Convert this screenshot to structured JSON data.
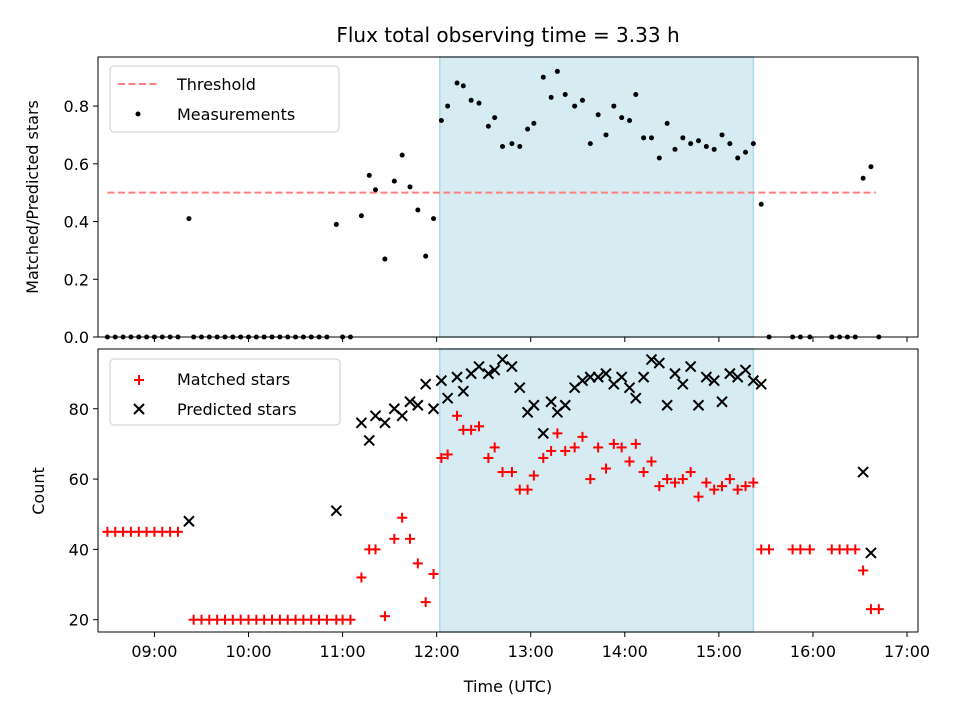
{
  "figure": {
    "title": "Flux total observing time = 3.33 h",
    "xlabel": "Time (UTC)",
    "xticks": [
      "09:00",
      "10:00",
      "11:00",
      "12:00",
      "13:00",
      "14:00",
      "15:00",
      "16:00",
      "17:00"
    ]
  },
  "colors": {
    "threshold": "#ff7f7f",
    "measurements": "#000000",
    "matched": "#ff0000",
    "predicted": "#000000",
    "shade": "#add8e6"
  },
  "chart_data": [
    {
      "type": "scatter",
      "ylabel": "Matched/Predicted stars",
      "ylim": [
        0,
        0.97
      ],
      "xlim": [
        "08:24",
        "17:07"
      ],
      "yticks": [
        "0.0",
        "0.2",
        "0.4",
        "0.6",
        "0.8"
      ],
      "shaded_interval": [
        "12:02",
        "15:22"
      ],
      "threshold": {
        "value": 0.5,
        "x": [
          "08:30",
          "16:40"
        ]
      },
      "legend": {
        "position": "top-left",
        "entries": [
          "Threshold",
          "Measurements"
        ]
      },
      "series": [
        {
          "name": "Measurements",
          "marker": "dot",
          "points": [
            [
              "08:30",
              0
            ],
            [
              "08:35",
              0
            ],
            [
              "08:40",
              0
            ],
            [
              "08:45",
              0
            ],
            [
              "08:50",
              0
            ],
            [
              "08:55",
              0
            ],
            [
              "09:00",
              0
            ],
            [
              "09:05",
              0
            ],
            [
              "09:10",
              0
            ],
            [
              "09:15",
              0
            ],
            [
              "09:22",
              0.41
            ],
            [
              "09:25",
              0
            ],
            [
              "09:30",
              0
            ],
            [
              "09:35",
              0
            ],
            [
              "09:40",
              0
            ],
            [
              "09:45",
              0
            ],
            [
              "09:50",
              0
            ],
            [
              "09:55",
              0
            ],
            [
              "10:00",
              0
            ],
            [
              "10:05",
              0
            ],
            [
              "10:10",
              0
            ],
            [
              "10:15",
              0
            ],
            [
              "10:20",
              0
            ],
            [
              "10:25",
              0
            ],
            [
              "10:30",
              0
            ],
            [
              "10:35",
              0
            ],
            [
              "10:40",
              0
            ],
            [
              "10:45",
              0
            ],
            [
              "10:50",
              0
            ],
            [
              "10:56",
              0.39
            ],
            [
              "11:00",
              0
            ],
            [
              "11:05",
              0
            ],
            [
              "11:12",
              0.42
            ],
            [
              "11:17",
              0.56
            ],
            [
              "11:21",
              0.51
            ],
            [
              "11:27",
              0.27
            ],
            [
              "11:33",
              0.54
            ],
            [
              "11:38",
              0.63
            ],
            [
              "11:43",
              0.52
            ],
            [
              "11:48",
              0.44
            ],
            [
              "11:53",
              0.28
            ],
            [
              "11:58",
              0.41
            ],
            [
              "12:03",
              0.75
            ],
            [
              "12:07",
              0.8
            ],
            [
              "12:13",
              0.88
            ],
            [
              "12:17",
              0.87
            ],
            [
              "12:22",
              0.82
            ],
            [
              "12:27",
              0.81
            ],
            [
              "12:33",
              0.73
            ],
            [
              "12:37",
              0.76
            ],
            [
              "12:42",
              0.66
            ],
            [
              "12:48",
              0.67
            ],
            [
              "12:53",
              0.66
            ],
            [
              "12:58",
              0.72
            ],
            [
              "13:02",
              0.74
            ],
            [
              "13:08",
              0.9
            ],
            [
              "13:13",
              0.83
            ],
            [
              "13:17",
              0.92
            ],
            [
              "13:22",
              0.84
            ],
            [
              "13:28",
              0.8
            ],
            [
              "13:33",
              0.82
            ],
            [
              "13:38",
              0.67
            ],
            [
              "13:43",
              0.77
            ],
            [
              "13:48",
              0.7
            ],
            [
              "13:53",
              0.8
            ],
            [
              "13:58",
              0.76
            ],
            [
              "14:03",
              0.75
            ],
            [
              "14:07",
              0.84
            ],
            [
              "14:12",
              0.69
            ],
            [
              "14:17",
              0.69
            ],
            [
              "14:22",
              0.62
            ],
            [
              "14:27",
              0.74
            ],
            [
              "14:32",
              0.65
            ],
            [
              "14:37",
              0.69
            ],
            [
              "14:42",
              0.67
            ],
            [
              "14:47",
              0.68
            ],
            [
              "14:52",
              0.66
            ],
            [
              "14:57",
              0.65
            ],
            [
              "15:02",
              0.7
            ],
            [
              "15:07",
              0.67
            ],
            [
              "15:12",
              0.62
            ],
            [
              "15:17",
              0.64
            ],
            [
              "15:22",
              0.67
            ],
            [
              "15:27",
              0.46
            ],
            [
              "15:32",
              0
            ],
            [
              "15:47",
              0
            ],
            [
              "15:52",
              0
            ],
            [
              "15:58",
              0
            ],
            [
              "16:12",
              0
            ],
            [
              "16:17",
              0
            ],
            [
              "16:22",
              0
            ],
            [
              "16:27",
              0
            ],
            [
              "16:32",
              0.55
            ],
            [
              "16:37",
              0.59
            ],
            [
              "16:42",
              0
            ]
          ]
        }
      ]
    },
    {
      "type": "scatter",
      "ylabel": "Count",
      "ylim": [
        16.5,
        97
      ],
      "xlim": [
        "08:24",
        "17:07"
      ],
      "yticks": [
        "20",
        "40",
        "60",
        "80"
      ],
      "shaded_interval": [
        "12:02",
        "15:22"
      ],
      "legend": {
        "position": "top-left",
        "entries": [
          "Matched stars",
          "Predicted stars"
        ]
      },
      "series": [
        {
          "name": "Matched stars",
          "marker": "plus",
          "points": [
            [
              "08:30",
              45
            ],
            [
              "08:35",
              45
            ],
            [
              "08:40",
              45
            ],
            [
              "08:45",
              45
            ],
            [
              "08:50",
              45
            ],
            [
              "08:55",
              45
            ],
            [
              "09:00",
              45
            ],
            [
              "09:05",
              45
            ],
            [
              "09:10",
              45
            ],
            [
              "09:15",
              45
            ],
            [
              "09:25",
              20
            ],
            [
              "09:30",
              20
            ],
            [
              "09:35",
              20
            ],
            [
              "09:40",
              20
            ],
            [
              "09:45",
              20
            ],
            [
              "09:50",
              20
            ],
            [
              "09:55",
              20
            ],
            [
              "10:00",
              20
            ],
            [
              "10:05",
              20
            ],
            [
              "10:10",
              20
            ],
            [
              "10:15",
              20
            ],
            [
              "10:20",
              20
            ],
            [
              "10:25",
              20
            ],
            [
              "10:30",
              20
            ],
            [
              "10:35",
              20
            ],
            [
              "10:40",
              20
            ],
            [
              "10:45",
              20
            ],
            [
              "10:50",
              20
            ],
            [
              "10:56",
              20
            ],
            [
              "11:00",
              20
            ],
            [
              "11:05",
              20
            ],
            [
              "11:12",
              32
            ],
            [
              "11:17",
              40
            ],
            [
              "11:21",
              40
            ],
            [
              "11:27",
              21
            ],
            [
              "11:33",
              43
            ],
            [
              "11:38",
              49
            ],
            [
              "11:43",
              43
            ],
            [
              "11:48",
              36
            ],
            [
              "11:53",
              25
            ],
            [
              "11:58",
              33
            ],
            [
              "12:03",
              66
            ],
            [
              "12:07",
              67
            ],
            [
              "12:13",
              78
            ],
            [
              "12:17",
              74
            ],
            [
              "12:22",
              74
            ],
            [
              "12:27",
              75
            ],
            [
              "12:33",
              66
            ],
            [
              "12:37",
              69
            ],
            [
              "12:42",
              62
            ],
            [
              "12:48",
              62
            ],
            [
              "12:53",
              57
            ],
            [
              "12:58",
              57
            ],
            [
              "13:02",
              61
            ],
            [
              "13:08",
              66
            ],
            [
              "13:13",
              68
            ],
            [
              "13:17",
              73
            ],
            [
              "13:22",
              68
            ],
            [
              "13:28",
              69
            ],
            [
              "13:33",
              72
            ],
            [
              "13:38",
              60
            ],
            [
              "13:43",
              69
            ],
            [
              "13:48",
              63
            ],
            [
              "13:53",
              70
            ],
            [
              "13:58",
              69
            ],
            [
              "14:03",
              65
            ],
            [
              "14:07",
              70
            ],
            [
              "14:12",
              62
            ],
            [
              "14:17",
              65
            ],
            [
              "14:22",
              58
            ],
            [
              "14:27",
              60
            ],
            [
              "14:32",
              59
            ],
            [
              "14:37",
              60
            ],
            [
              "14:42",
              62
            ],
            [
              "14:47",
              55
            ],
            [
              "14:52",
              59
            ],
            [
              "14:57",
              57
            ],
            [
              "15:02",
              58
            ],
            [
              "15:07",
              60
            ],
            [
              "15:12",
              57
            ],
            [
              "15:17",
              58
            ],
            [
              "15:22",
              59
            ],
            [
              "15:27",
              40
            ],
            [
              "15:32",
              40
            ],
            [
              "15:47",
              40
            ],
            [
              "15:52",
              40
            ],
            [
              "15:58",
              40
            ],
            [
              "16:12",
              40
            ],
            [
              "16:17",
              40
            ],
            [
              "16:22",
              40
            ],
            [
              "16:27",
              40
            ],
            [
              "16:32",
              34
            ],
            [
              "16:37",
              23
            ],
            [
              "16:42",
              23
            ]
          ]
        },
        {
          "name": "Predicted stars",
          "marker": "x",
          "points": [
            [
              "09:22",
              48
            ],
            [
              "10:56",
              51
            ],
            [
              "11:12",
              76
            ],
            [
              "11:17",
              71
            ],
            [
              "11:21",
              78
            ],
            [
              "11:27",
              76
            ],
            [
              "11:33",
              80
            ],
            [
              "11:38",
              78
            ],
            [
              "11:43",
              82
            ],
            [
              "11:48",
              81
            ],
            [
              "11:53",
              87
            ],
            [
              "11:58",
              80
            ],
            [
              "12:03",
              88
            ],
            [
              "12:07",
              83
            ],
            [
              "12:13",
              89
            ],
            [
              "12:17",
              85
            ],
            [
              "12:22",
              90
            ],
            [
              "12:27",
              92
            ],
            [
              "12:33",
              90
            ],
            [
              "12:37",
              91
            ],
            [
              "12:42",
              94
            ],
            [
              "12:48",
              92
            ],
            [
              "12:53",
              86
            ],
            [
              "12:58",
              79
            ],
            [
              "13:02",
              81
            ],
            [
              "13:08",
              73
            ],
            [
              "13:13",
              82
            ],
            [
              "13:17",
              79
            ],
            [
              "13:22",
              81
            ],
            [
              "13:28",
              86
            ],
            [
              "13:33",
              88
            ],
            [
              "13:38",
              89
            ],
            [
              "13:43",
              89
            ],
            [
              "13:48",
              90
            ],
            [
              "13:53",
              87
            ],
            [
              "13:58",
              89
            ],
            [
              "14:03",
              86
            ],
            [
              "14:07",
              83
            ],
            [
              "14:12",
              89
            ],
            [
              "14:17",
              94
            ],
            [
              "14:22",
              93
            ],
            [
              "14:27",
              81
            ],
            [
              "14:32",
              90
            ],
            [
              "14:37",
              87
            ],
            [
              "14:42",
              92
            ],
            [
              "14:47",
              81
            ],
            [
              "14:52",
              89
            ],
            [
              "14:57",
              88
            ],
            [
              "15:02",
              82
            ],
            [
              "15:07",
              90
            ],
            [
              "15:12",
              89
            ],
            [
              "15:17",
              91
            ],
            [
              "15:22",
              88
            ],
            [
              "15:27",
              87
            ],
            [
              "16:32",
              62
            ],
            [
              "16:37",
              39
            ]
          ]
        }
      ]
    }
  ]
}
